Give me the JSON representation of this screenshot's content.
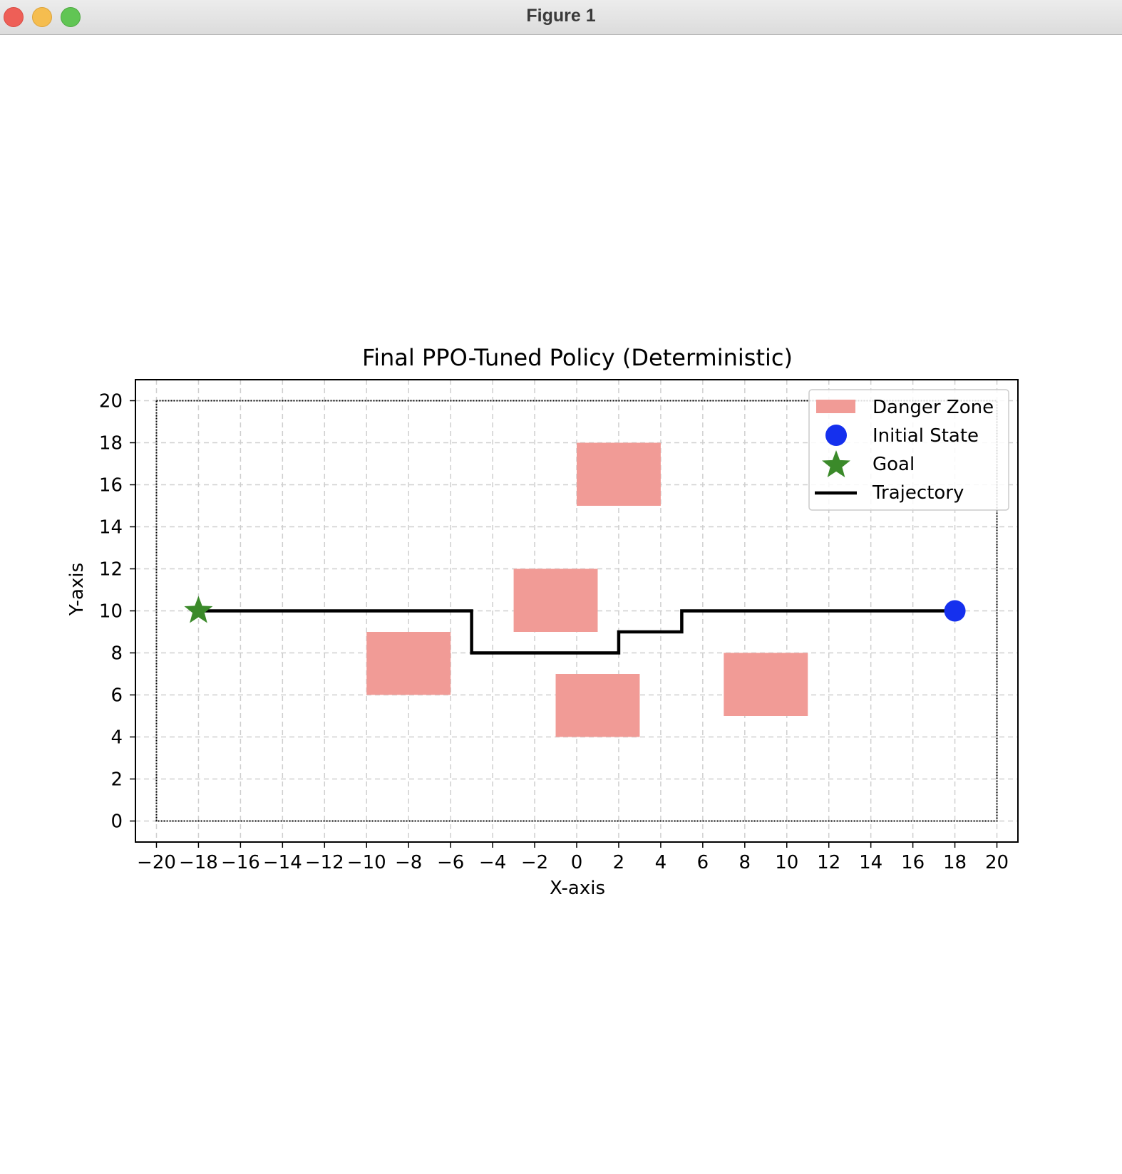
{
  "window": {
    "title": "Figure 1"
  },
  "chart_data": {
    "type": "scatter",
    "title": "Final PPO-Tuned Policy (Deterministic)",
    "xlabel": "X-axis",
    "ylabel": "Y-axis",
    "xlim": [
      -21,
      21
    ],
    "ylim": [
      -1,
      21
    ],
    "xticks": [
      -20,
      -18,
      -16,
      -14,
      -12,
      -10,
      -8,
      -6,
      -4,
      -2,
      0,
      2,
      4,
      6,
      8,
      10,
      12,
      14,
      16,
      18,
      20
    ],
    "yticks": [
      0,
      2,
      4,
      6,
      8,
      10,
      12,
      14,
      16,
      18,
      20
    ],
    "grid": true,
    "boundary": {
      "x": [
        -20,
        20
      ],
      "y": [
        0,
        20
      ]
    },
    "danger_zones": [
      {
        "x": [
          0,
          4
        ],
        "y": [
          15,
          18
        ]
      },
      {
        "x": [
          -3,
          1
        ],
        "y": [
          9,
          12
        ]
      },
      {
        "x": [
          -10,
          -6
        ],
        "y": [
          6,
          9
        ]
      },
      {
        "x": [
          -1,
          3
        ],
        "y": [
          4,
          7
        ]
      },
      {
        "x": [
          7,
          11
        ],
        "y": [
          5,
          8
        ]
      }
    ],
    "initial_state": {
      "x": 18,
      "y": 10
    },
    "goal": {
      "x": -18,
      "y": 10
    },
    "trajectory": {
      "x": [
        18,
        5,
        5,
        2,
        2,
        -5,
        -5,
        -18
      ],
      "y": [
        10,
        10,
        9,
        9,
        8,
        8,
        10,
        10
      ]
    },
    "legend": {
      "placement": "top-right",
      "entries": [
        "Danger Zone",
        "Initial State",
        "Goal",
        "Trajectory"
      ]
    },
    "colors": {
      "danger_zone": "#f19b96",
      "initial_state": "#1530ee",
      "goal": "#3b8a2a",
      "trajectory": "#000000",
      "grid": "#cfcfcf"
    }
  }
}
